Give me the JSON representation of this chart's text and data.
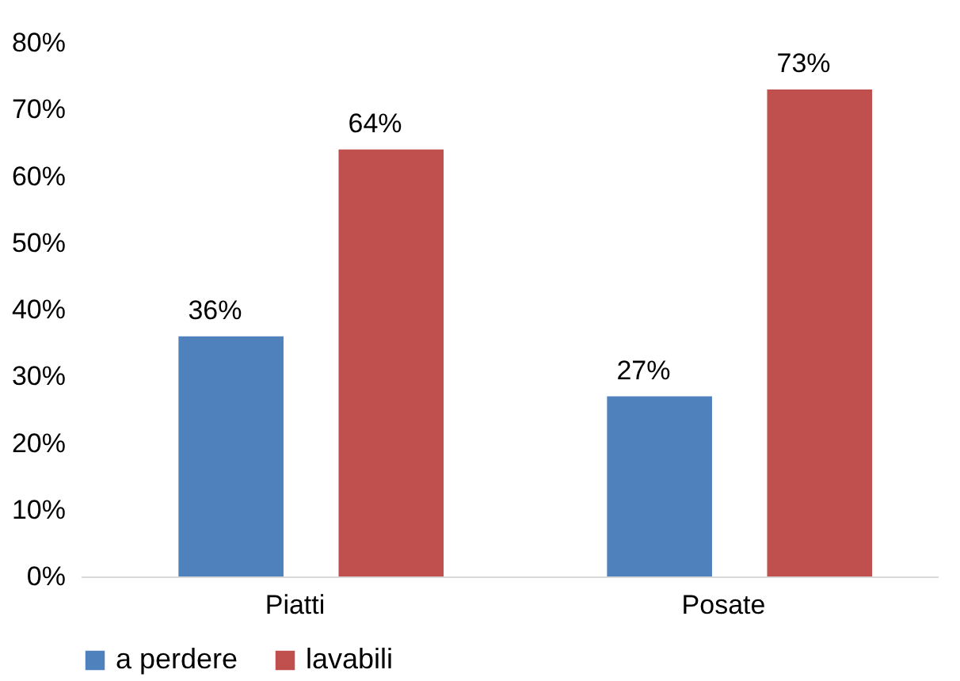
{
  "chart_data": {
    "type": "bar",
    "categories": [
      "Piatti",
      "Posate"
    ],
    "series": [
      {
        "name": "a perdere",
        "color": "#4f81bd",
        "values": [
          36,
          27
        ],
        "value_labels": [
          "36%",
          "27%"
        ]
      },
      {
        "name": "lavabili",
        "color": "#c0504d",
        "values": [
          64,
          73
        ],
        "value_labels": [
          "64%",
          "73%"
        ]
      }
    ],
    "ylim": [
      0,
      80
    ],
    "yticks": [
      {
        "value": 0,
        "label": "0%"
      },
      {
        "value": 10,
        "label": "10%"
      },
      {
        "value": 20,
        "label": "20%"
      },
      {
        "value": 30,
        "label": "30%"
      },
      {
        "value": 40,
        "label": "40%"
      },
      {
        "value": 50,
        "label": "50%"
      },
      {
        "value": 60,
        "label": "60%"
      },
      {
        "value": 70,
        "label": "70%"
      },
      {
        "value": 80,
        "label": "80%"
      }
    ],
    "grid": false,
    "legend": "bottom"
  }
}
